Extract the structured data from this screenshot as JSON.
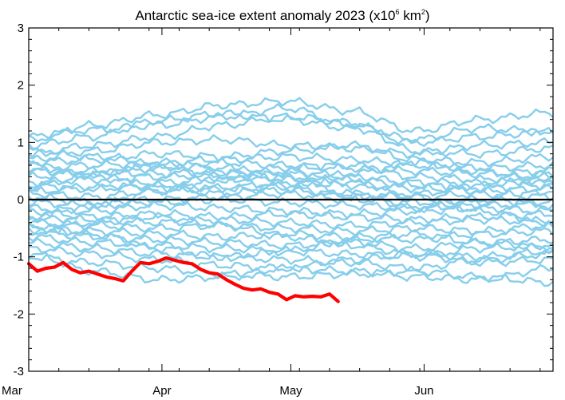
{
  "chart_data": {
    "type": "line",
    "title_main": "Antarctic sea-ice extent anomaly 2023 (x10",
    "title_sup1": "6",
    "title_mid": " km",
    "title_sup2": "2",
    "title_end": ")",
    "xlabel": "",
    "ylabel": "",
    "ylim": [
      -3,
      3
    ],
    "xlim": [
      0,
      122
    ],
    "y_ticks": [
      "-3",
      "-2",
      "-1",
      "0",
      "1",
      "2",
      "3"
    ],
    "x_tick_labels": [
      "Mar",
      "Apr",
      "May",
      "Jun"
    ],
    "x_tick_days": [
      0,
      31,
      61,
      92
    ],
    "zero_line": true,
    "grid": false,
    "colors": {
      "history": "#87CEEB",
      "current": "#FF0000",
      "zero": "#000000",
      "axis": "#000000"
    },
    "history_series": [
      {
        "x": [
          0,
          15,
          30,
          45,
          60,
          75,
          90,
          105,
          122
        ],
        "y": [
          1.1,
          1.22,
          1.3,
          1.45,
          1.6,
          1.3,
          1.05,
          1.25,
          1.18
        ]
      },
      {
        "x": [
          0,
          15,
          30,
          45,
          60,
          75,
          90,
          105,
          122
        ],
        "y": [
          1.05,
          1.3,
          1.48,
          1.65,
          1.72,
          1.55,
          1.2,
          1.4,
          1.52
        ]
      },
      {
        "x": [
          0,
          15,
          30,
          45,
          60,
          75,
          90,
          105,
          122
        ],
        "y": [
          0.95,
          1.1,
          1.38,
          1.5,
          1.4,
          1.25,
          1.0,
          1.1,
          1.2
        ]
      },
      {
        "x": [
          0,
          15,
          30,
          45,
          60,
          75,
          90,
          105,
          122
        ],
        "y": [
          0.8,
          0.95,
          1.1,
          1.3,
          1.45,
          1.35,
          0.85,
          0.8,
          0.9
        ]
      },
      {
        "x": [
          0,
          15,
          30,
          45,
          60,
          75,
          90,
          105,
          122
        ],
        "y": [
          0.7,
          0.85,
          1.0,
          1.05,
          0.95,
          0.9,
          0.8,
          0.95,
          1.0
        ]
      },
      {
        "x": [
          0,
          15,
          30,
          45,
          60,
          75,
          90,
          105,
          122
        ],
        "y": [
          0.65,
          0.7,
          0.8,
          0.75,
          0.85,
          0.95,
          0.7,
          0.65,
          0.75
        ]
      },
      {
        "x": [
          0,
          15,
          30,
          45,
          60,
          75,
          90,
          105,
          122
        ],
        "y": [
          0.55,
          0.6,
          0.65,
          0.7,
          0.75,
          0.7,
          0.6,
          0.55,
          0.6
        ]
      },
      {
        "x": [
          0,
          15,
          30,
          45,
          60,
          75,
          90,
          105,
          122
        ],
        "y": [
          0.5,
          0.45,
          0.55,
          0.65,
          0.6,
          0.55,
          0.5,
          0.45,
          0.5
        ]
      },
      {
        "x": [
          0,
          15,
          30,
          45,
          60,
          75,
          90,
          105,
          122
        ],
        "y": [
          0.4,
          0.5,
          0.45,
          0.5,
          0.55,
          0.6,
          0.4,
          0.35,
          0.45
        ]
      },
      {
        "x": [
          0,
          15,
          30,
          45,
          60,
          75,
          90,
          105,
          122
        ],
        "y": [
          0.3,
          0.35,
          0.4,
          0.45,
          0.5,
          0.4,
          0.3,
          0.3,
          0.35
        ]
      },
      {
        "x": [
          0,
          15,
          30,
          45,
          60,
          75,
          90,
          105,
          122
        ],
        "y": [
          0.25,
          0.2,
          0.3,
          0.35,
          0.4,
          0.35,
          0.25,
          0.2,
          0.25
        ]
      },
      {
        "x": [
          0,
          15,
          30,
          45,
          60,
          75,
          90,
          105,
          122
        ],
        "y": [
          0.15,
          0.2,
          0.25,
          0.2,
          0.3,
          0.25,
          0.2,
          0.15,
          0.2
        ]
      },
      {
        "x": [
          0,
          15,
          30,
          45,
          60,
          75,
          90,
          105,
          122
        ],
        "y": [
          0.1,
          0.05,
          0.15,
          0.2,
          0.15,
          0.1,
          0.05,
          0.1,
          0.05
        ]
      },
      {
        "x": [
          0,
          15,
          30,
          45,
          60,
          75,
          90,
          105,
          122
        ],
        "y": [
          0.05,
          -0.05,
          0.0,
          0.05,
          0.1,
          0.0,
          -0.05,
          0.0,
          -0.1
        ]
      },
      {
        "x": [
          0,
          15,
          30,
          45,
          60,
          75,
          90,
          105,
          122
        ],
        "y": [
          -0.05,
          -0.1,
          -0.05,
          0.0,
          -0.05,
          -0.1,
          -0.15,
          -0.1,
          -0.05
        ]
      },
      {
        "x": [
          0,
          15,
          30,
          45,
          60,
          75,
          90,
          105,
          122
        ],
        "y": [
          -0.15,
          -0.2,
          -0.1,
          -0.15,
          -0.2,
          -0.25,
          -0.2,
          -0.15,
          -0.2
        ]
      },
      {
        "x": [
          0,
          15,
          30,
          45,
          60,
          75,
          90,
          105,
          122
        ],
        "y": [
          -0.2,
          -0.3,
          -0.25,
          -0.3,
          -0.25,
          -0.3,
          -0.35,
          -0.3,
          -0.25
        ]
      },
      {
        "x": [
          0,
          15,
          30,
          45,
          60,
          75,
          90,
          105,
          122
        ],
        "y": [
          -0.3,
          -0.35,
          -0.4,
          -0.35,
          -0.4,
          -0.45,
          -0.4,
          -0.35,
          -0.4
        ]
      },
      {
        "x": [
          0,
          15,
          30,
          45,
          60,
          75,
          90,
          105,
          122
        ],
        "y": [
          -0.4,
          -0.45,
          -0.5,
          -0.45,
          -0.5,
          -0.55,
          -0.5,
          -0.55,
          -0.45
        ]
      },
      {
        "x": [
          0,
          15,
          30,
          45,
          60,
          75,
          90,
          105,
          122
        ],
        "y": [
          -0.5,
          -0.55,
          -0.6,
          -0.65,
          -0.6,
          -0.65,
          -0.7,
          -0.6,
          -0.55
        ]
      },
      {
        "x": [
          0,
          15,
          30,
          45,
          60,
          75,
          90,
          105,
          122
        ],
        "y": [
          -0.55,
          -0.65,
          -0.7,
          -0.75,
          -0.8,
          -0.75,
          -0.85,
          -0.75,
          -0.7
        ]
      },
      {
        "x": [
          0,
          15,
          30,
          45,
          60,
          75,
          90,
          105,
          122
        ],
        "y": [
          -0.65,
          -0.75,
          -0.8,
          -0.85,
          -0.9,
          -0.95,
          -1.0,
          -0.85,
          -0.8
        ]
      },
      {
        "x": [
          0,
          15,
          30,
          45,
          60,
          75,
          90,
          105,
          122
        ],
        "y": [
          -0.75,
          -0.85,
          -0.95,
          -1.0,
          -1.05,
          -1.1,
          -1.2,
          -1.05,
          -0.95
        ]
      },
      {
        "x": [
          0,
          15,
          30,
          45,
          60,
          75,
          90,
          105,
          122
        ],
        "y": [
          -0.85,
          -0.95,
          -1.05,
          -1.15,
          -1.2,
          -1.25,
          -1.35,
          -1.4,
          -1.2
        ]
      },
      {
        "x": [
          0,
          15,
          30,
          45,
          60,
          75,
          90,
          105,
          122
        ],
        "y": [
          -1.0,
          -1.1,
          -1.2,
          -1.3,
          -1.35,
          -1.3,
          -1.25,
          -1.35,
          -1.45
        ]
      },
      {
        "x": [
          0,
          15,
          30,
          45,
          60,
          75,
          90,
          105,
          122
        ],
        "y": [
          -0.95,
          -1.25,
          -1.4,
          -1.35,
          -1.2,
          -1.05,
          -0.95,
          -1.0,
          -0.9
        ]
      },
      {
        "x": [
          0,
          15,
          30,
          45,
          60,
          75,
          90,
          105,
          122
        ],
        "y": [
          0.6,
          0.4,
          0.2,
          0.1,
          0.25,
          0.45,
          0.65,
          0.5,
          0.3
        ]
      },
      {
        "x": [
          0,
          15,
          30,
          45,
          60,
          75,
          90,
          105,
          122
        ],
        "y": [
          -0.35,
          -0.1,
          0.15,
          0.35,
          0.45,
          0.3,
          0.05,
          -0.2,
          -0.4
        ]
      },
      {
        "x": [
          0,
          15,
          30,
          45,
          60,
          75,
          90,
          105,
          122
        ],
        "y": [
          0.2,
          0.45,
          0.6,
          0.55,
          0.35,
          0.1,
          -0.15,
          -0.05,
          0.15
        ]
      },
      {
        "x": [
          0,
          15,
          30,
          45,
          60,
          75,
          90,
          105,
          122
        ],
        "y": [
          -0.6,
          -0.4,
          -0.3,
          -0.45,
          -0.65,
          -0.8,
          -0.95,
          -1.1,
          -1.05
        ]
      },
      {
        "x": [
          0,
          15,
          30,
          45,
          60,
          75,
          90,
          105,
          122
        ],
        "y": [
          0.85,
          0.75,
          0.6,
          0.4,
          0.2,
          0.05,
          0.1,
          0.25,
          0.4
        ]
      },
      {
        "x": [
          0,
          15,
          30,
          45,
          60,
          75,
          90,
          105,
          122
        ],
        "y": [
          -0.45,
          -0.6,
          -0.85,
          -1.0,
          -0.9,
          -0.7,
          -0.6,
          -0.75,
          -0.85
        ]
      }
    ],
    "current_series": {
      "name": "",
      "x": [
        0,
        2,
        4,
        6,
        8,
        10,
        12,
        14,
        16,
        18,
        20,
        22,
        24,
        26,
        28,
        30,
        32,
        34,
        36,
        38,
        40,
        42,
        44,
        46,
        48,
        50,
        52,
        54,
        56,
        58,
        60,
        62,
        64,
        66,
        68,
        70,
        72
      ],
      "y": [
        -1.12,
        -1.25,
        -1.2,
        -1.18,
        -1.1,
        -1.22,
        -1.28,
        -1.25,
        -1.3,
        -1.35,
        -1.38,
        -1.42,
        -1.25,
        -1.1,
        -1.12,
        -1.08,
        -1.02,
        -1.06,
        -1.1,
        -1.12,
        -1.22,
        -1.28,
        -1.3,
        -1.4,
        -1.48,
        -1.55,
        -1.58,
        -1.56,
        -1.62,
        -1.65,
        -1.75,
        -1.68,
        -1.7,
        -1.69,
        -1.7,
        -1.65,
        -1.78
      ]
    }
  }
}
